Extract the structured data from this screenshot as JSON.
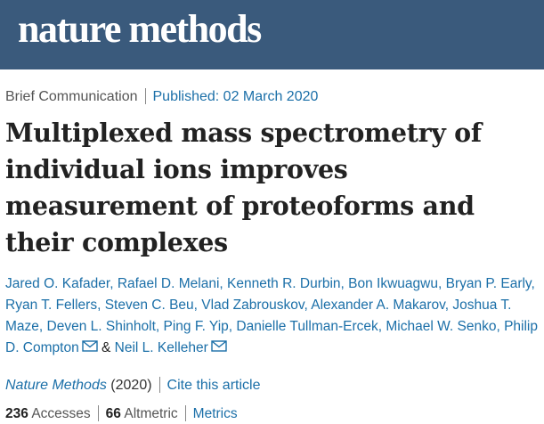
{
  "header": {
    "logo_text": "nature methods",
    "bg_color": "#3a5a7c"
  },
  "article": {
    "type": "Brief Communication",
    "published": "Published: 02 March 2020",
    "title": "Multiplexed mass spectrometry of individual ions improves measurement of proteoforms and their complexes",
    "authors": [
      "Jared O. Kafader",
      "Rafael D. Melani",
      "Kenneth R. Durbin",
      "Bon Ikwuagwu",
      "Bryan P. Early",
      "Ryan T. Fellers",
      "Steven C. Beu",
      "Vlad Zabrouskov",
      "Alexander A. Makarov",
      "Joshua T. Maze",
      "Deven L. Shinholt",
      "Ping F. Yip",
      "Danielle Tullman-Ercek",
      "Michael W. Senko",
      "Philip D. Compton",
      "Neil L. Kelleher"
    ],
    "author_joiner": "&",
    "journal": "Nature Methods",
    "year": "(2020)",
    "cite_link": "Cite this article",
    "accesses_count": "236",
    "accesses_label": "Accesses",
    "altmetric_count": "66",
    "altmetric_label": "Altmetric",
    "metrics_link": "Metrics"
  },
  "icons": {
    "email": "envelope-icon"
  },
  "colors": {
    "link": "#1b6fa8",
    "text": "#222222"
  }
}
